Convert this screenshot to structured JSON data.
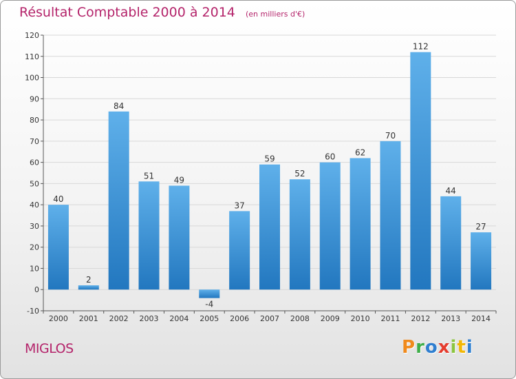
{
  "header": {
    "title": "Résultat Comptable 2000 à 2014",
    "unit": "(en milliers d'€)"
  },
  "footer": {
    "commune": "MIGLOS",
    "logo_text": "Proxiti",
    "logo_colors": [
      "#f08a1c",
      "#3fae49",
      "#2f7fd0",
      "#e53c2e",
      "#8bc53f",
      "#f2b705",
      "#2f7fd0"
    ]
  },
  "colors": {
    "title": "#b4236a",
    "bar_top": "#5fb0ea",
    "bar_bottom": "#2277bf",
    "grid": "#d8d8d8",
    "axis_text": "#333333"
  },
  "chart_data": {
    "type": "bar",
    "categories": [
      "2000",
      "2001",
      "2002",
      "2003",
      "2004",
      "2005",
      "2006",
      "2007",
      "2008",
      "2009",
      "2010",
      "2011",
      "2012",
      "2013",
      "2014"
    ],
    "values": [
      40,
      2,
      84,
      51,
      49,
      -4,
      37,
      59,
      52,
      60,
      62,
      70,
      112,
      44,
      27
    ],
    "ylim": [
      -10,
      120
    ],
    "yticks": [
      -10,
      0,
      10,
      20,
      30,
      40,
      50,
      60,
      70,
      80,
      90,
      100,
      110,
      120
    ],
    "grid": true,
    "legend": "none"
  }
}
